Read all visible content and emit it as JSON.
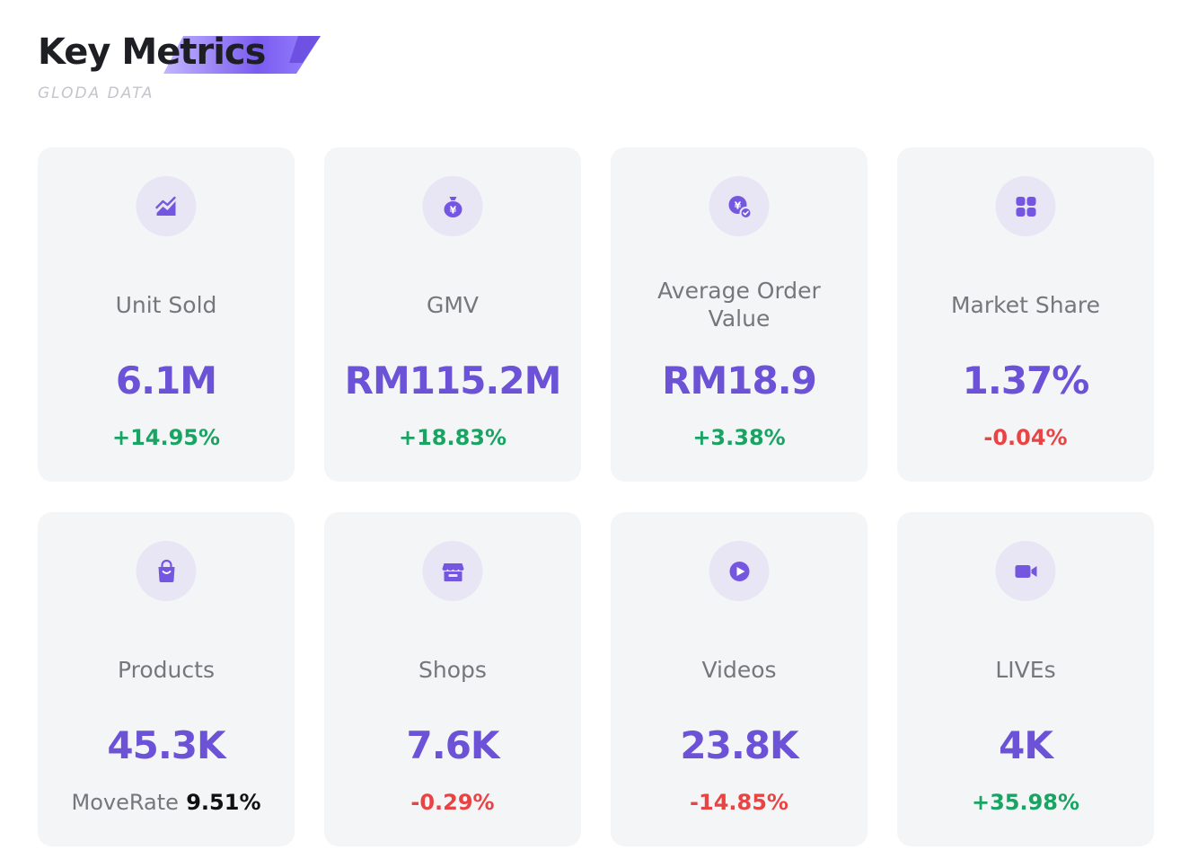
{
  "header": {
    "title": "Key Metrics",
    "subtitle": "GLODA DATA",
    "accent_colors": [
      "#6a4ee0",
      "#b8a7ff"
    ]
  },
  "colors": {
    "value": "#6c52d6",
    "positive": "#1aa463",
    "negative": "#e94444",
    "label": "#77767b",
    "card_bg": "#f4f5f7",
    "icon_bg": "#e8e5f5"
  },
  "metrics": [
    {
      "icon": "trend-chart-icon",
      "label": "Unit Sold",
      "value": "6.1M",
      "change": "+14.95%",
      "direction": "up"
    },
    {
      "icon": "money-bag-icon",
      "label": "GMV",
      "value": "RM115.2M",
      "change": "+18.83%",
      "direction": "up"
    },
    {
      "icon": "coin-check-icon",
      "label": "Average Order Value",
      "value": "RM18.9",
      "change": "+3.38%",
      "direction": "up"
    },
    {
      "icon": "grid-icon",
      "label": "Market Share",
      "value": "1.37%",
      "change": "-0.04%",
      "direction": "down"
    },
    {
      "icon": "shopping-bag-icon",
      "label": "Products",
      "value": "45.3K",
      "moverate_label": "MoveRate",
      "moverate_value": "9.51%"
    },
    {
      "icon": "store-icon",
      "label": "Shops",
      "value": "7.6K",
      "change": "-0.29%",
      "direction": "down"
    },
    {
      "icon": "play-icon",
      "label": "Videos",
      "value": "23.8K",
      "change": "-14.85%",
      "direction": "down"
    },
    {
      "icon": "video-camera-icon",
      "label": "LIVEs",
      "value": "4K",
      "change": "+35.98%",
      "direction": "up"
    }
  ]
}
